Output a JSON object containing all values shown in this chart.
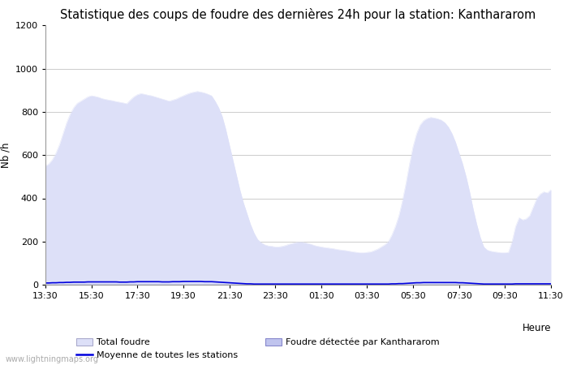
{
  "title": "Statistique des coups de foudre des dernières 24h pour la station: Kanthararom",
  "ylabel": "Nb /h",
  "xlabel_right": "Heure",
  "watermark": "www.lightningmaps.org",
  "ylim": [
    0,
    1200
  ],
  "yticks": [
    0,
    200,
    400,
    600,
    800,
    1000,
    1200
  ],
  "xtick_labels": [
    "13:30",
    "15:30",
    "17:30",
    "19:30",
    "21:30",
    "23:30",
    "01:30",
    "03:30",
    "05:30",
    "07:30",
    "09:30",
    "11:30"
  ],
  "bg_color": "#ffffff",
  "plot_bg_color": "#ffffff",
  "grid_color": "#cccccc",
  "area1_color": "#dde0f8",
  "area1_edge": "#dde0f8",
  "area2_color": "#c0c4ee",
  "area2_edge": "#c0c4ee",
  "line_color": "#0000dd",
  "title_fontsize": 10.5,
  "tick_fontsize": 8,
  "label_fontsize": 8.5,
  "n_points": 144,
  "total_foudre": [
    550,
    560,
    580,
    610,
    650,
    700,
    750,
    790,
    820,
    840,
    850,
    860,
    870,
    875,
    872,
    868,
    862,
    858,
    855,
    852,
    848,
    845,
    842,
    838,
    855,
    870,
    880,
    885,
    882,
    878,
    875,
    870,
    865,
    860,
    855,
    850,
    855,
    860,
    868,
    875,
    882,
    888,
    892,
    895,
    892,
    888,
    882,
    875,
    850,
    820,
    780,
    720,
    650,
    580,
    510,
    440,
    380,
    330,
    280,
    240,
    210,
    195,
    185,
    180,
    178,
    175,
    175,
    178,
    182,
    188,
    192,
    196,
    198,
    196,
    192,
    188,
    182,
    178,
    175,
    172,
    170,
    168,
    165,
    162,
    160,
    158,
    155,
    152,
    150,
    148,
    148,
    150,
    152,
    158,
    165,
    175,
    185,
    200,
    230,
    270,
    320,
    390,
    470,
    560,
    640,
    700,
    740,
    760,
    770,
    775,
    772,
    768,
    762,
    750,
    730,
    700,
    660,
    610,
    560,
    500,
    430,
    350,
    280,
    220,
    175,
    160,
    155,
    152,
    150,
    148,
    148,
    150,
    200,
    270,
    310,
    300,
    305,
    320,
    360,
    400,
    420,
    430,
    425,
    440
  ],
  "foudre_kanthararom": [
    2,
    2,
    2,
    2,
    2,
    3,
    3,
    3,
    3,
    3,
    3,
    3,
    3,
    3,
    3,
    3,
    3,
    3,
    3,
    3,
    3,
    3,
    3,
    3,
    3,
    3,
    3,
    3,
    3,
    3,
    3,
    3,
    3,
    3,
    3,
    3,
    3,
    3,
    3,
    3,
    3,
    3,
    3,
    3,
    3,
    3,
    3,
    3,
    3,
    3,
    3,
    3,
    2,
    2,
    2,
    2,
    2,
    2,
    2,
    2,
    2,
    2,
    2,
    2,
    2,
    2,
    2,
    2,
    2,
    2,
    2,
    2,
    2,
    2,
    2,
    2,
    2,
    2,
    2,
    2,
    2,
    2,
    2,
    2,
    2,
    2,
    2,
    2,
    2,
    2,
    2,
    2,
    2,
    2,
    2,
    2,
    2,
    2,
    2,
    2,
    2,
    2,
    2,
    2,
    2,
    2,
    2,
    2,
    2,
    2,
    2,
    2,
    2,
    2,
    2,
    2,
    2,
    2,
    2,
    2,
    2,
    2,
    2,
    2,
    2,
    2,
    2,
    2,
    2,
    2,
    2,
    2,
    2,
    2,
    2,
    2,
    2,
    2,
    2,
    2,
    2,
    2,
    2,
    2
  ],
  "moyenne_stations": [
    8,
    8,
    9,
    9,
    10,
    10,
    11,
    11,
    12,
    12,
    12,
    12,
    13,
    13,
    13,
    13,
    13,
    13,
    13,
    13,
    13,
    12,
    12,
    12,
    13,
    13,
    14,
    14,
    14,
    14,
    14,
    14,
    14,
    13,
    13,
    13,
    14,
    14,
    14,
    15,
    15,
    15,
    15,
    15,
    15,
    14,
    14,
    14,
    13,
    12,
    11,
    10,
    9,
    8,
    7,
    6,
    5,
    4,
    4,
    3,
    3,
    3,
    3,
    3,
    3,
    3,
    3,
    3,
    3,
    3,
    3,
    3,
    3,
    3,
    3,
    3,
    3,
    3,
    3,
    3,
    3,
    3,
    3,
    3,
    3,
    3,
    3,
    3,
    3,
    3,
    3,
    3,
    3,
    3,
    3,
    3,
    3,
    3,
    4,
    4,
    5,
    5,
    6,
    7,
    8,
    9,
    9,
    10,
    10,
    10,
    10,
    10,
    10,
    10,
    10,
    10,
    10,
    9,
    9,
    8,
    7,
    6,
    5,
    4,
    3,
    3,
    3,
    3,
    3,
    3,
    3,
    3,
    3,
    4,
    4,
    4,
    4,
    4,
    4,
    4,
    4,
    4,
    4,
    4
  ]
}
